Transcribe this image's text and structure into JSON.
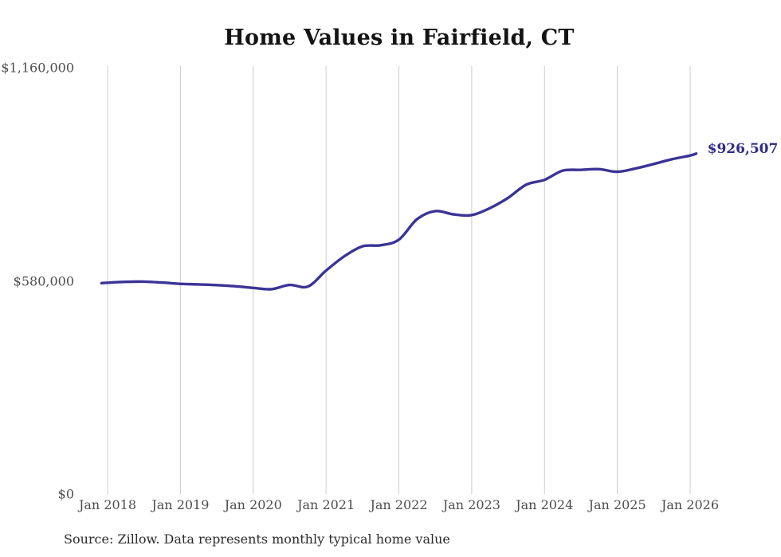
{
  "chart": {
    "title": "Home Values in Fairfield, CT",
    "end_label": "$926,507",
    "source_note": "Source: Zillow. Data represents monthly typical home value"
  },
  "colors": {
    "line": "#3a3496",
    "end_label": "#2e2b87",
    "grid": "#cccccc",
    "axis_text": "#4d4d4d",
    "title_text": "#141414",
    "source_text": "#2b2b2b",
    "background": "#ffffff"
  },
  "chart_data": {
    "type": "line",
    "title": "Home Values in Fairfield, CT",
    "xlabel": "",
    "ylabel": "",
    "x_unit": "month",
    "grid": "vertical-only",
    "legend": "none",
    "y_axis": {
      "min": 0,
      "max": 1160000,
      "ticks": [
        {
          "label": "$1,160,000",
          "value": 1160000
        },
        {
          "label": "$580,000",
          "value": 580000
        },
        {
          "label": "$0",
          "value": 0
        }
      ]
    },
    "x_axis": {
      "ticks": [
        {
          "label": "Jan 2018",
          "date": "2018-01"
        },
        {
          "label": "Jan 2019",
          "date": "2019-01"
        },
        {
          "label": "Jan 2020",
          "date": "2020-01"
        },
        {
          "label": "Jan 2021",
          "date": "2021-01"
        },
        {
          "label": "Jan 2022",
          "date": "2022-01"
        },
        {
          "label": "Jan 2023",
          "date": "2023-01"
        },
        {
          "label": "Jan 2024",
          "date": "2024-01"
        },
        {
          "label": "Jan 2025",
          "date": "2025-01"
        },
        {
          "label": "Jan 2026",
          "date": "2026-01"
        }
      ]
    },
    "series": [
      {
        "name": "Monthly typical home value",
        "points": [
          [
            "2017-12",
            574000
          ],
          [
            "2018-01",
            575000
          ],
          [
            "2018-04",
            577500
          ],
          [
            "2018-07",
            578000
          ],
          [
            "2018-10",
            575500
          ],
          [
            "2019-01",
            572000
          ],
          [
            "2019-04",
            570500
          ],
          [
            "2019-07",
            568500
          ],
          [
            "2019-10",
            565500
          ],
          [
            "2020-01",
            561000
          ],
          [
            "2020-04",
            557500
          ],
          [
            "2020-07",
            569000
          ],
          [
            "2020-10",
            564500
          ],
          [
            "2021-01",
            608000
          ],
          [
            "2021-04",
            647000
          ],
          [
            "2021-07",
            674000
          ],
          [
            "2021-10",
            677000
          ],
          [
            "2022-01",
            692000
          ],
          [
            "2022-04",
            748000
          ],
          [
            "2022-07",
            770000
          ],
          [
            "2022-10",
            761000
          ],
          [
            "2023-01",
            759000
          ],
          [
            "2023-04",
            778000
          ],
          [
            "2023-07",
            806000
          ],
          [
            "2023-10",
            842000
          ],
          [
            "2024-01",
            855000
          ],
          [
            "2024-04",
            880000
          ],
          [
            "2024-07",
            882000
          ],
          [
            "2024-10",
            884000
          ],
          [
            "2025-01",
            877000
          ],
          [
            "2025-04",
            886000
          ],
          [
            "2025-07",
            898000
          ],
          [
            "2025-10",
            911000
          ],
          [
            "2026-01",
            921000
          ],
          [
            "2026-02",
            926507
          ]
        ]
      }
    ],
    "latest": {
      "date": "2026-02",
      "value": 926507,
      "label": "$926,507"
    }
  }
}
